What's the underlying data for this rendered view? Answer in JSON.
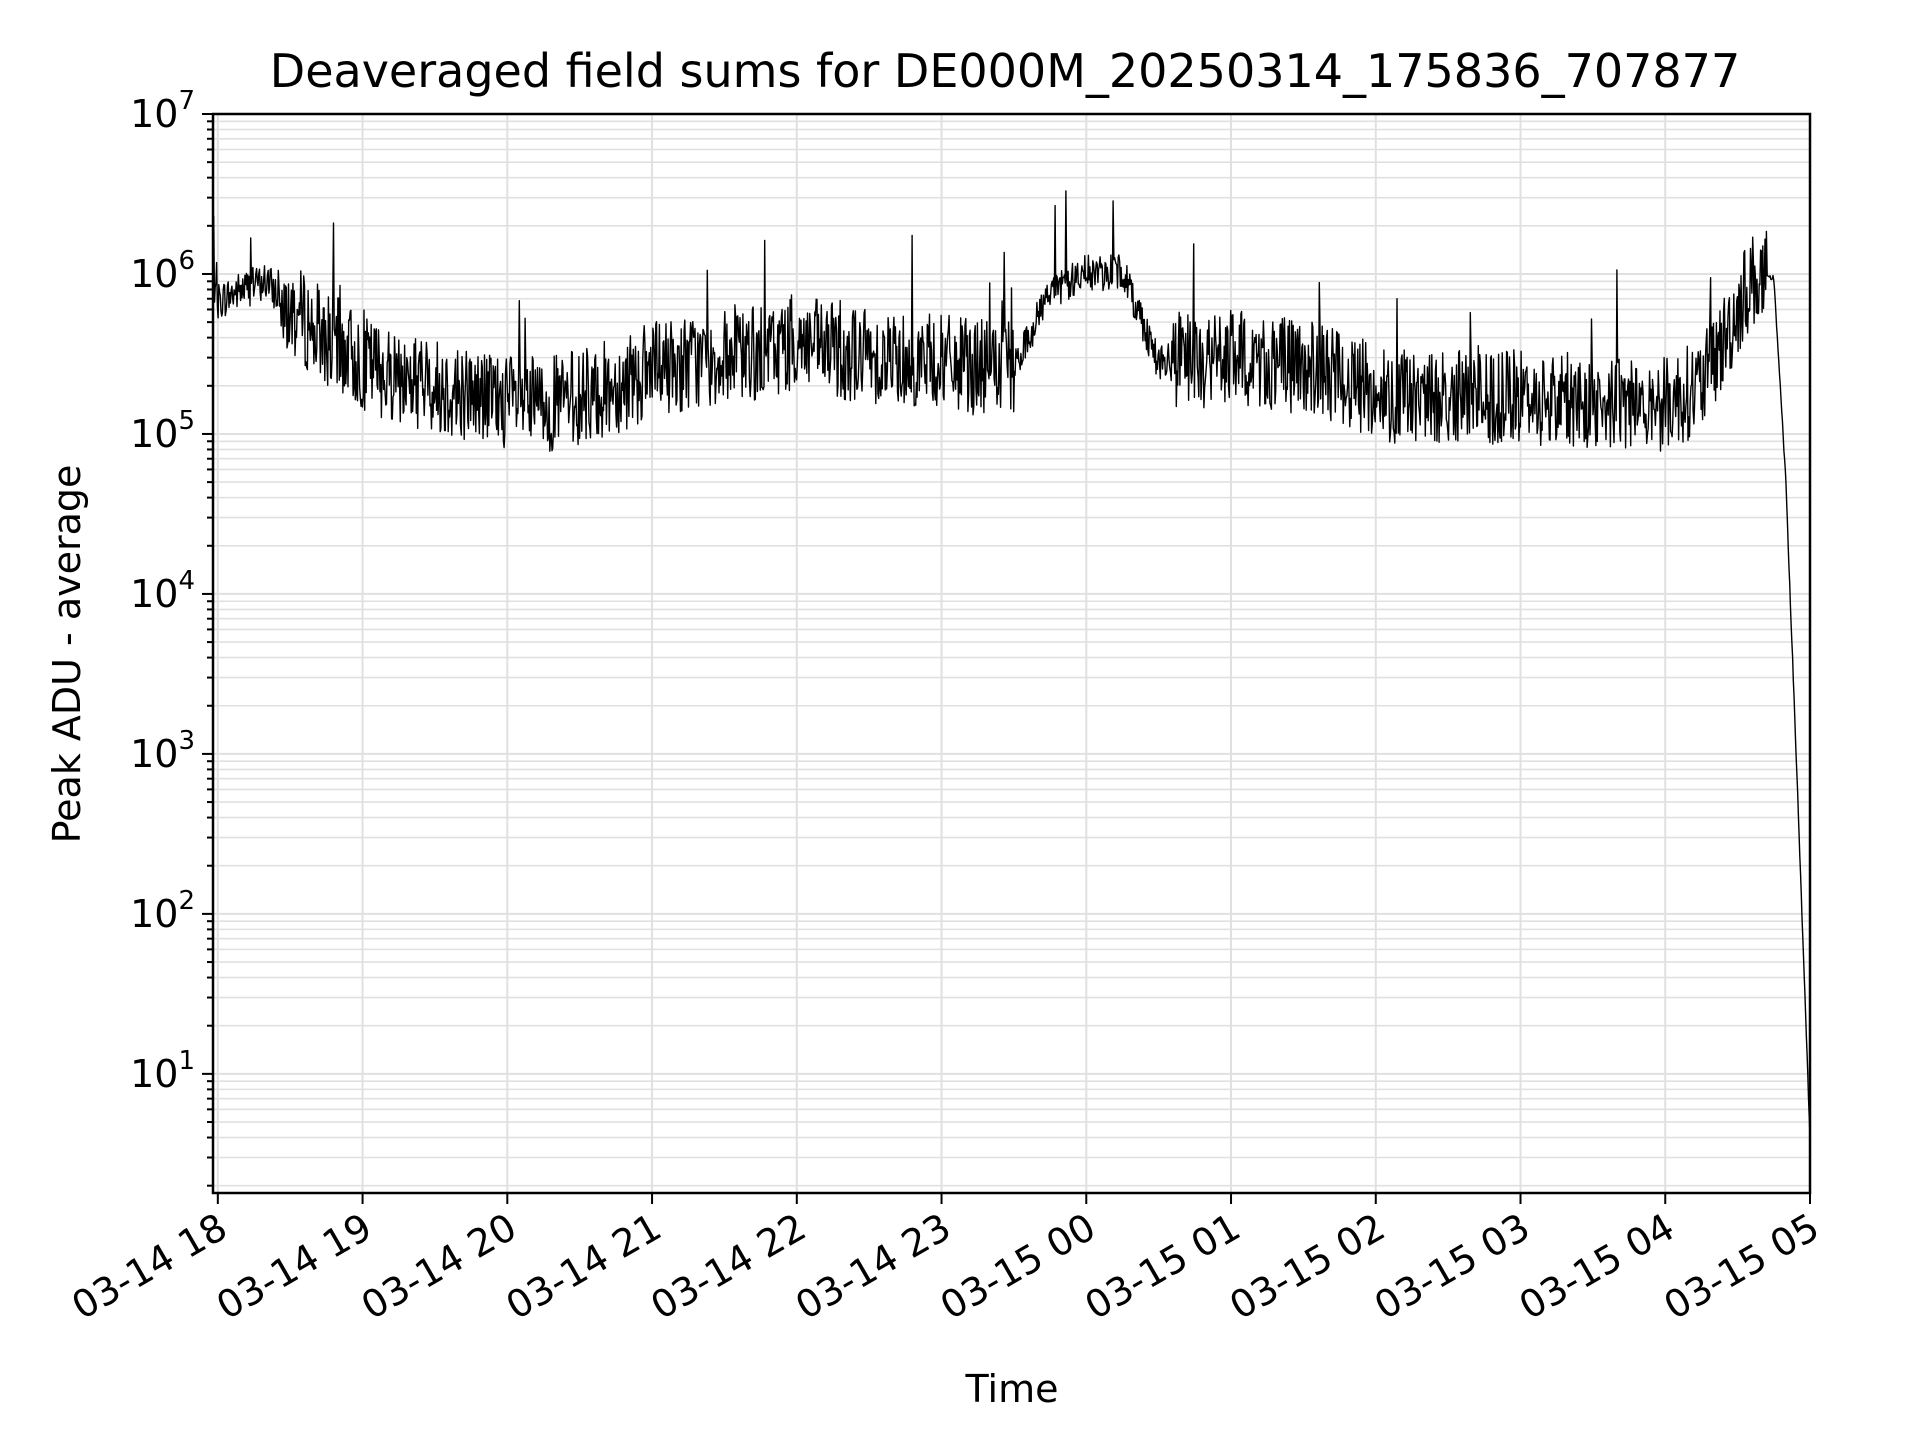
{
  "chart_data": {
    "type": "line",
    "title": "Deaveraged field sums for DE000M_20250314_175836_707877",
    "xlabel": "Time",
    "ylabel": "Peak ADU - average",
    "yscale": "log",
    "ylim": [
      1.8,
      10000000
    ],
    "xlim": [
      "2025-03-14 17:58",
      "2025-03-15 05:00"
    ],
    "grid": true,
    "legend": "none",
    "line_color": "#000000",
    "grid_color": "#e0e0e0",
    "xticks": [
      "03-14 18",
      "03-14 19",
      "03-14 20",
      "03-14 21",
      "03-14 22",
      "03-14 23",
      "03-15 00",
      "03-15 01",
      "03-15 02",
      "03-15 03",
      "03-15 04",
      "03-15 05"
    ],
    "yticks": [
      {
        "base": "10",
        "exp": "1"
      },
      {
        "base": "10",
        "exp": "2"
      },
      {
        "base": "10",
        "exp": "3"
      },
      {
        "base": "10",
        "exp": "4"
      },
      {
        "base": "10",
        "exp": "5"
      },
      {
        "base": "10",
        "exp": "6"
      },
      {
        "base": "10",
        "exp": "7"
      }
    ],
    "series": [
      {
        "x": [
          "2025-03-14 17:58",
          "2025-03-14 18:10",
          "2025-03-14 18:20",
          "2025-03-14 18:30",
          "2025-03-14 18:45",
          "2025-03-14 19:00",
          "2025-03-14 19:15",
          "2025-03-14 19:30",
          "2025-03-14 19:45",
          "2025-03-14 20:00",
          "2025-03-14 20:15",
          "2025-03-14 20:30",
          "2025-03-14 20:45",
          "2025-03-14 21:00",
          "2025-03-14 21:15",
          "2025-03-14 21:30",
          "2025-03-14 21:45",
          "2025-03-14 22:00",
          "2025-03-14 22:15",
          "2025-03-14 22:30",
          "2025-03-14 22:45",
          "2025-03-14 23:00",
          "2025-03-14 23:15",
          "2025-03-14 23:30",
          "2025-03-14 23:45",
          "2025-03-15 00:00",
          "2025-03-15 00:15",
          "2025-03-15 00:30",
          "2025-03-15 00:45",
          "2025-03-15 01:00",
          "2025-03-15 01:15",
          "2025-03-15 01:30",
          "2025-03-15 01:45",
          "2025-03-15 02:00",
          "2025-03-15 02:15",
          "2025-03-15 02:30",
          "2025-03-15 02:45",
          "2025-03-15 03:00",
          "2025-03-15 03:15",
          "2025-03-15 03:30",
          "2025-03-15 03:45",
          "2025-03-15 04:00",
          "2025-03-15 04:15",
          "2025-03-15 04:25",
          "2025-03-15 04:35",
          "2025-03-15 04:45",
          "2025-03-15 04:50",
          "2025-03-15 04:55",
          "2025-03-15 05:00"
        ],
        "y": [
          650000,
          800000,
          900000,
          600000,
          400000,
          280000,
          230000,
          200000,
          180000,
          160000,
          150000,
          170000,
          200000,
          250000,
          280000,
          300000,
          320000,
          380000,
          330000,
          310000,
          300000,
          280000,
          260000,
          250000,
          800000,
          1000000,
          1050000,
          280000,
          280000,
          300000,
          280000,
          260000,
          230000,
          180000,
          170000,
          170000,
          165000,
          170000,
          165000,
          160000,
          160000,
          155000,
          200000,
          400000,
          900000,
          950000,
          50000,
          500,
          4
        ]
      }
    ]
  }
}
